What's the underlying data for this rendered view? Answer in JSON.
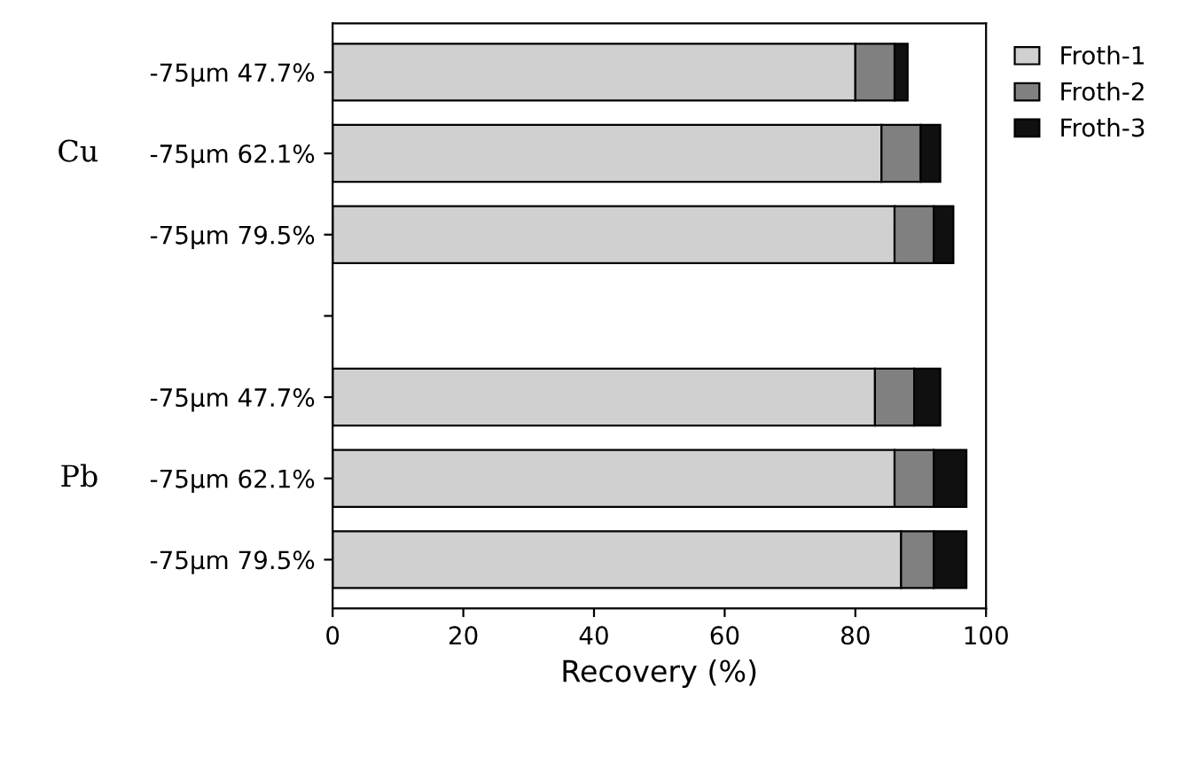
{
  "chart_data": {
    "type": "bar",
    "orientation": "horizontal",
    "stacked": true,
    "xlabel": "Recovery (%)",
    "categories": [
      "-75μm 47.7%",
      "-75μm 62.1%",
      "-75μm 79.5%",
      null,
      "-75μm 47.7%",
      "-75μm 62.1%",
      "-75μm 79.5%"
    ],
    "series": [
      {
        "name": "Froth-1",
        "color": "#d0d0d0",
        "values": [
          80,
          84,
          86,
          null,
          83,
          86,
          87
        ]
      },
      {
        "name": "Froth-2",
        "color": "#808080",
        "values": [
          6,
          6,
          6,
          null,
          6,
          6,
          5
        ]
      },
      {
        "name": "Froth-3",
        "color": "#101010",
        "values": [
          2,
          3,
          3,
          null,
          4,
          5,
          5
        ]
      }
    ],
    "annotations": [
      "Cu",
      "Pb"
    ],
    "xlim": [
      0,
      100
    ],
    "xticks": [
      0,
      20,
      40,
      60,
      80,
      100
    ],
    "grid": false,
    "legend": "top right"
  }
}
